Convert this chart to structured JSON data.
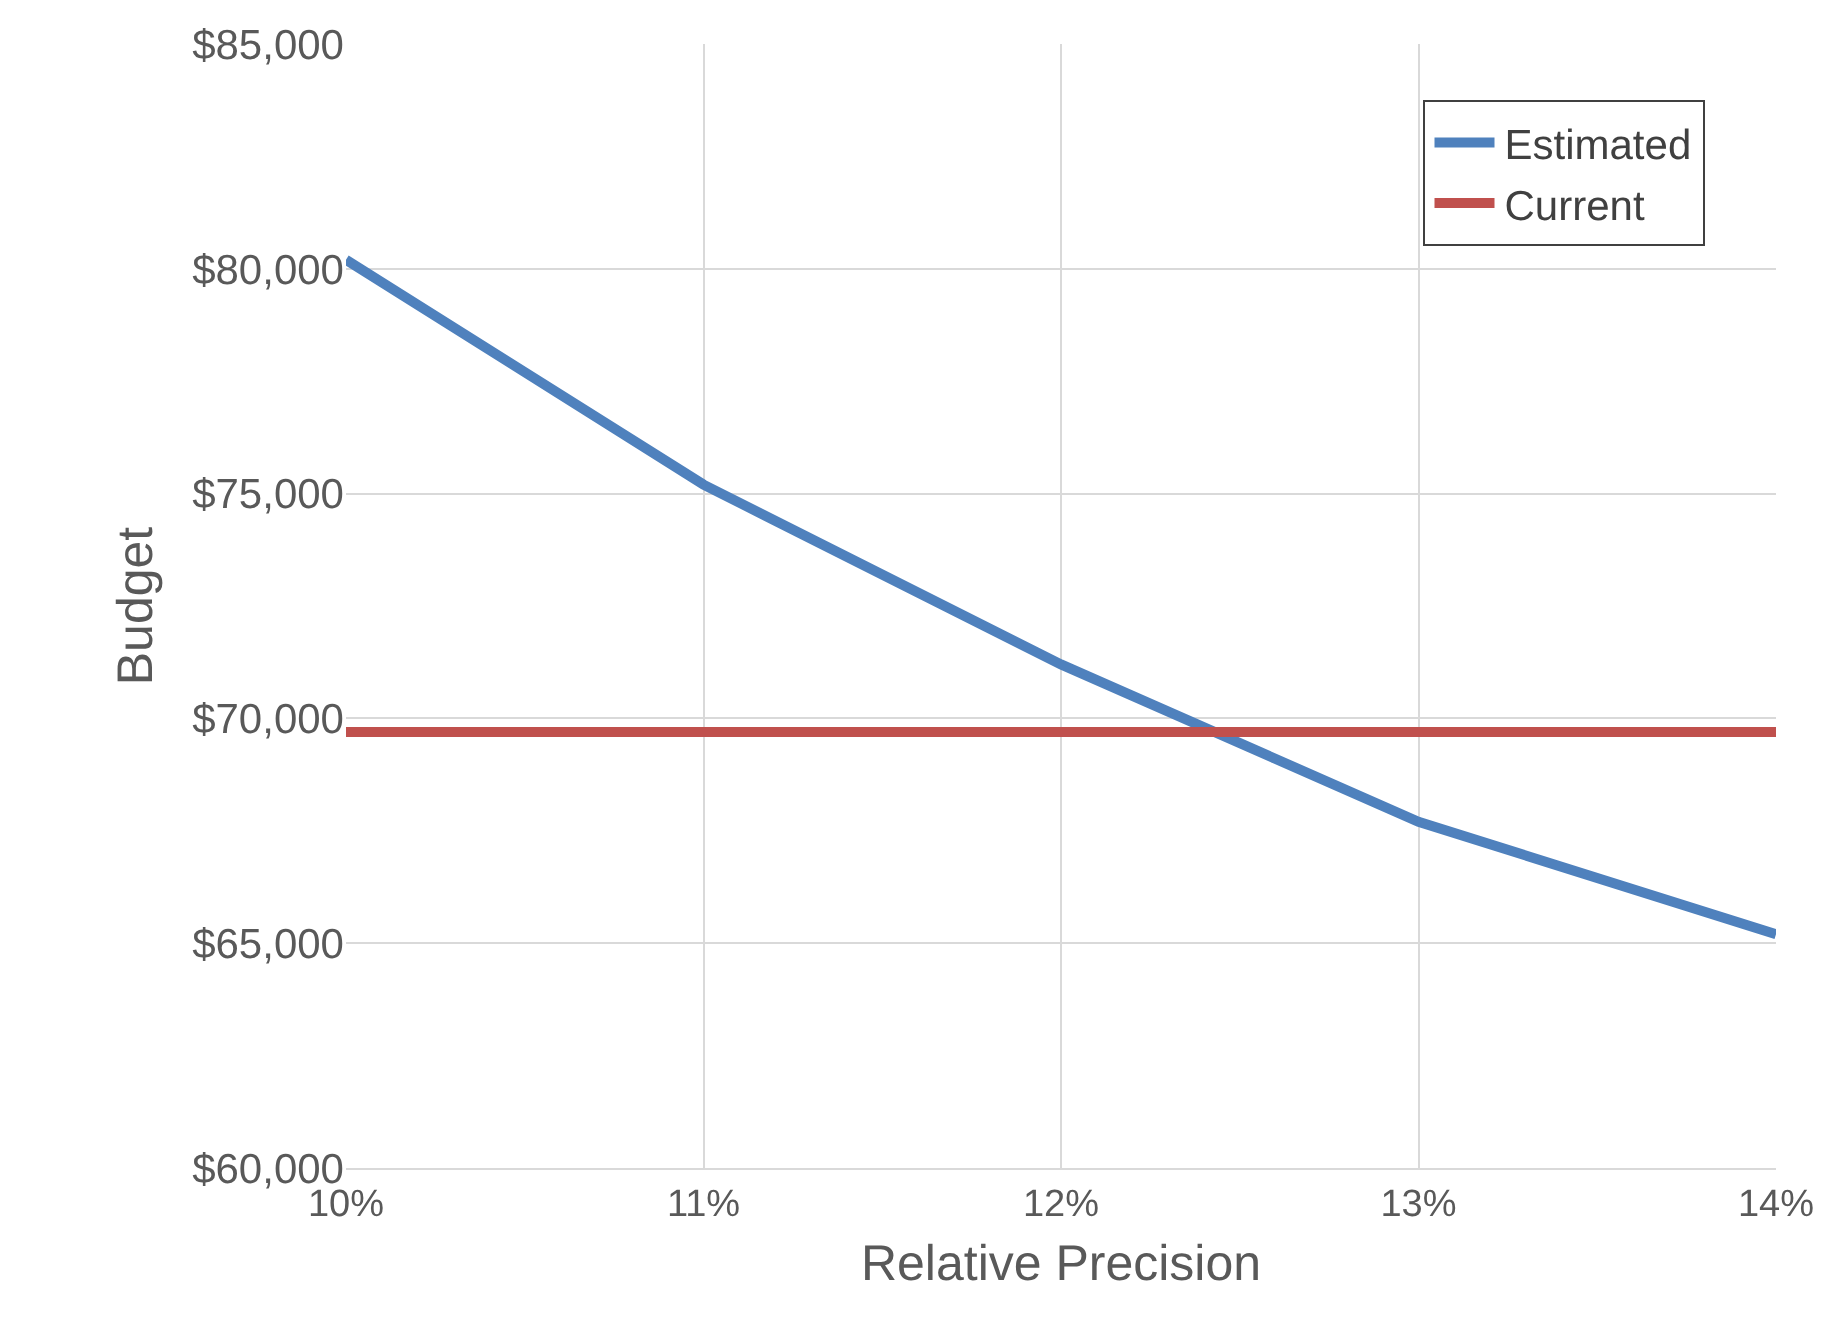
{
  "chart_data": {
    "type": "line",
    "xlabel": "Relative Precision",
    "ylabel": "Budget",
    "x": [
      10,
      11,
      12,
      13,
      14
    ],
    "series": [
      {
        "name": "Estimated",
        "color": "#4f81bd",
        "values": [
          80200,
          75200,
          71200,
          67700,
          65200
        ]
      },
      {
        "name": "Current",
        "color": "#c0504d",
        "values": [
          69700,
          69700,
          69700,
          69700,
          69700
        ]
      }
    ],
    "xlim": [
      10,
      14
    ],
    "xticks": [
      {
        "value": 10,
        "label": "10%"
      },
      {
        "value": 11,
        "label": "11%"
      },
      {
        "value": 12,
        "label": "12%"
      },
      {
        "value": 13,
        "label": "13%"
      },
      {
        "value": 14,
        "label": "14%"
      }
    ],
    "ylim": [
      60000,
      85000
    ],
    "yticks": [
      {
        "value": 60000,
        "label": "$60,000"
      },
      {
        "value": 65000,
        "label": "$65,000"
      },
      {
        "value": 70000,
        "label": "$70,000"
      },
      {
        "value": 75000,
        "label": "$75,000"
      },
      {
        "value": 80000,
        "label": "$80,000"
      },
      {
        "value": 85000,
        "label": "$85,000"
      }
    ],
    "grid": true,
    "legend": "top right",
    "marker": "none",
    "line_style": "solid"
  }
}
